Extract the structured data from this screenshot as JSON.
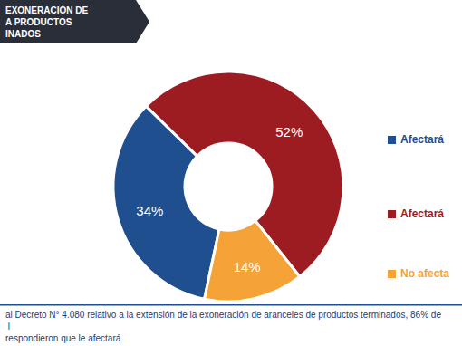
{
  "chart_data": {
    "type": "pie",
    "title": "EXONERACIÓN DE\nA PRODUCTOS\nINADOS",
    "categories": [
      "Afectará",
      "Afectará",
      "No afecta"
    ],
    "values": [
      34,
      52,
      14
    ],
    "value_labels": [
      "34%",
      "52%",
      "14%"
    ],
    "colors": [
      "#1f4f8f",
      "#9c1c22",
      "#f5a236"
    ],
    "data_labels": true,
    "annotations": [
      "al Decreto N° 4.080 relativo a la extensión de la exoneración de aranceles de productos terminados, 86% de l",
      "respondieron que le afectará"
    ]
  }
}
